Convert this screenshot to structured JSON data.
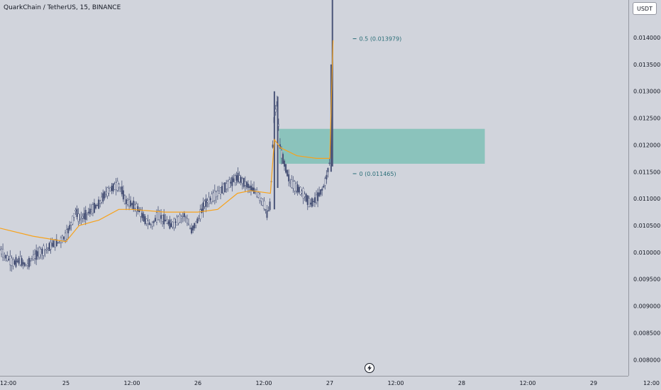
{
  "header": {
    "symbol_line": "QuarkChain / TetherUS, 15, BINANCE",
    "currency": "USDT"
  },
  "icons": {
    "brand": "lightning-logo-icon"
  },
  "colors": {
    "background": "#d1d4dc",
    "candle": "#4a5478",
    "moving_average": "#f7a21b",
    "zone": "#8bc3bc"
  },
  "chart_data": {
    "type": "candlestick",
    "title": "",
    "xlabel": "",
    "ylabel": "",
    "ylim": [
      0.0077,
      0.0147
    ],
    "y_ticks": [
      "0.014000",
      "0.013500",
      "0.013000",
      "0.012500",
      "0.012000",
      "0.011500",
      "0.011000",
      "0.010500",
      "0.010000",
      "0.009500",
      "0.009000",
      "0.008500",
      "0.008000"
    ],
    "y_tick_values": [
      0.014,
      0.0135,
      0.013,
      0.0125,
      0.012,
      0.0115,
      0.011,
      0.0105,
      0.01,
      0.0095,
      0.009,
      0.0085,
      0.008
    ],
    "xlim": [
      0,
      100
    ],
    "x_ticks": [
      {
        "label": "12:00",
        "x": 0
      },
      {
        "label": "25",
        "x": 10
      },
      {
        "label": "12:00",
        "x": 20
      },
      {
        "label": "26",
        "x": 30
      },
      {
        "label": "12:00",
        "x": 40
      },
      {
        "label": "27",
        "x": 50
      },
      {
        "label": "12:00",
        "x": 60
      },
      {
        "label": "28",
        "x": 70
      },
      {
        "label": "12:00",
        "x": 80
      },
      {
        "label": "29",
        "x": 90
      },
      {
        "label": "12:00",
        "x": 100
      }
    ],
    "series": [
      {
        "kind": "price",
        "points": [
          [
            0,
            0.01005
          ],
          [
            1,
            0.0099
          ],
          [
            2,
            0.0098
          ],
          [
            3,
            0.00985
          ],
          [
            4,
            0.00975
          ],
          [
            5,
            0.0099
          ],
          [
            6,
            0.01
          ],
          [
            7,
            0.01005
          ],
          [
            8,
            0.01015
          ],
          [
            9,
            0.0102
          ],
          [
            10,
            0.0103
          ],
          [
            11,
            0.0106
          ],
          [
            11.5,
            0.0108
          ],
          [
            12,
            0.0106
          ],
          [
            13,
            0.0107
          ],
          [
            14,
            0.0108
          ],
          [
            15,
            0.0109
          ],
          [
            16,
            0.0111
          ],
          [
            17,
            0.0112
          ],
          [
            18,
            0.01125
          ],
          [
            18.5,
            0.01115
          ],
          [
            19,
            0.01095
          ],
          [
            20,
            0.0109
          ],
          [
            21,
            0.0108
          ],
          [
            22,
            0.0106
          ],
          [
            23,
            0.0105
          ],
          [
            24,
            0.0107
          ],
          [
            25,
            0.0106
          ],
          [
            26,
            0.0105
          ],
          [
            27,
            0.0106
          ],
          [
            28,
            0.0107
          ],
          [
            29,
            0.0104
          ],
          [
            30,
            0.0106
          ],
          [
            31,
            0.0109
          ],
          [
            32,
            0.011
          ],
          [
            33,
            0.0111
          ],
          [
            34,
            0.0112
          ],
          [
            35,
            0.0113
          ],
          [
            36,
            0.0114
          ],
          [
            37,
            0.0113
          ],
          [
            38,
            0.0112
          ],
          [
            39,
            0.0111
          ],
          [
            40,
            0.0109
          ],
          [
            40.5,
            0.0107
          ],
          [
            41,
            0.0109
          ],
          [
            41.5,
            0.0124
          ],
          [
            42,
            0.0128
          ],
          [
            42.5,
            0.0119
          ],
          [
            43,
            0.0117
          ],
          [
            44,
            0.0113
          ],
          [
            45,
            0.0112
          ],
          [
            46,
            0.0111
          ],
          [
            47,
            0.0109
          ],
          [
            48,
            0.011
          ],
          [
            49,
            0.0112
          ],
          [
            49.5,
            0.0114
          ],
          [
            50,
            0.0117
          ],
          [
            50.3,
            0.0147
          ]
        ]
      },
      {
        "kind": "moving_average",
        "points": [
          [
            0,
            0.01045
          ],
          [
            5,
            0.0103
          ],
          [
            10,
            0.0102
          ],
          [
            12,
            0.0105
          ],
          [
            15,
            0.0106
          ],
          [
            18,
            0.0108
          ],
          [
            20,
            0.0108
          ],
          [
            25,
            0.01075
          ],
          [
            30,
            0.01075
          ],
          [
            33,
            0.0108
          ],
          [
            36,
            0.0111
          ],
          [
            38,
            0.01115
          ],
          [
            41,
            0.0111
          ],
          [
            41.6,
            0.0121
          ],
          [
            42.5,
            0.01195
          ],
          [
            45,
            0.0118
          ],
          [
            48,
            0.01175
          ],
          [
            50,
            0.01175
          ],
          [
            50.2,
            0.0127
          ],
          [
            50.5,
            0.01395
          ]
        ]
      }
    ],
    "zone": {
      "x_start": 42.3,
      "x_end": 73.5,
      "y_low": 0.01165,
      "y_high": 0.0123
    },
    "annotations": [
      {
        "label": "0.5 (0.013979)",
        "x": 53.5,
        "y": 0.013979
      },
      {
        "label": "0 (0.011465)",
        "x": 53.5,
        "y": 0.011465
      }
    ]
  }
}
